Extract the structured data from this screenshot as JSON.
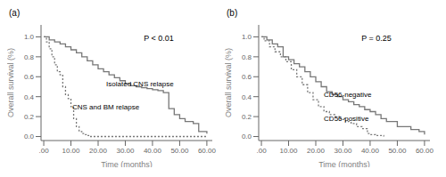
{
  "chart_data": [
    {
      "type": "step",
      "title": "(a)",
      "xlabel": "Time (months)",
      "ylabel": "Overall survival (%)",
      "xlim": [
        -1,
        62
      ],
      "ylim": [
        -0.04,
        1.12
      ],
      "xticks": [
        {
          "value": 0,
          "label": ".00"
        },
        {
          "value": 10,
          "label": "10.00"
        },
        {
          "value": 20,
          "label": "20.00"
        },
        {
          "value": 30,
          "label": "30.00"
        },
        {
          "value": 40,
          "label": "40.00"
        },
        {
          "value": 50,
          "label": "50.00"
        },
        {
          "value": 60,
          "label": "60.00"
        }
      ],
      "yticks": [
        {
          "value": 0.0,
          "label": "0.0"
        },
        0.2,
        0.4,
        0.6,
        0.8,
        {
          "value": 1.0,
          "label": "1.0"
        }
      ],
      "grid": false,
      "legend": false,
      "series": [
        {
          "name": "Isolated CNS relapse",
          "color": "#777777",
          "line_style": "solid",
          "x": [
            0,
            2,
            4,
            6,
            8,
            10,
            12,
            14,
            16,
            18,
            20,
            22,
            24,
            26,
            28,
            30,
            32,
            34,
            36,
            38,
            40,
            42,
            44,
            46,
            48,
            50,
            52,
            55,
            57,
            60
          ],
          "values": [
            1.0,
            0.97,
            0.95,
            0.93,
            0.9,
            0.87,
            0.84,
            0.8,
            0.76,
            0.72,
            0.68,
            0.65,
            0.62,
            0.59,
            0.56,
            0.53,
            0.51,
            0.5,
            0.49,
            0.48,
            0.47,
            0.46,
            0.44,
            0.28,
            0.22,
            0.18,
            0.15,
            0.13,
            0.05,
            0.03
          ]
        },
        {
          "name": "CNS and BM relapse",
          "color": "#777777",
          "line_style": "dotted",
          "x": [
            0,
            1,
            2,
            3,
            4,
            5,
            6,
            7,
            8,
            9,
            10,
            11,
            12,
            13,
            14,
            15,
            16,
            17,
            60
          ],
          "values": [
            1.0,
            0.95,
            0.88,
            0.8,
            0.72,
            0.65,
            0.62,
            0.5,
            0.42,
            0.38,
            0.3,
            0.18,
            0.1,
            0.05,
            0.03,
            0.02,
            0.01,
            0.0,
            0.0
          ]
        }
      ],
      "annotations": [
        {
          "text": "Isolated CNS relapse",
          "x": 22,
          "y": 0.53
        },
        {
          "text": "CNS and BM relapse",
          "x": 9.5,
          "y": 0.295
        },
        {
          "text": "P < 0.01"
        }
      ]
    },
    {
      "type": "step",
      "title": "(b)",
      "xlabel": "Time (months)",
      "ylabel": "Overall survival (%)",
      "xlim": [
        -1,
        62
      ],
      "ylim": [
        -0.04,
        1.12
      ],
      "xticks": [
        {
          "value": 0,
          "label": ".00"
        },
        {
          "value": 10,
          "label": "10.00"
        },
        {
          "value": 20,
          "label": "20.00"
        },
        {
          "value": 30,
          "label": "30.00"
        },
        {
          "value": 40,
          "label": "40.00"
        },
        {
          "value": 50,
          "label": "50.00"
        },
        {
          "value": 60,
          "label": "60.00"
        }
      ],
      "yticks": [
        {
          "value": 0.0,
          "label": "0.0"
        },
        0.2,
        0.4,
        0.6,
        0.8,
        {
          "value": 1.0,
          "label": "1.0"
        }
      ],
      "grid": false,
      "legend": false,
      "series": [
        {
          "name": "CD56-negative",
          "color": "#777777",
          "line_style": "solid",
          "x": [
            0,
            2,
            4,
            6,
            8,
            10,
            12,
            14,
            16,
            18,
            20,
            22,
            24,
            26,
            28,
            30,
            32,
            34,
            36,
            38,
            40,
            42,
            44,
            46,
            50,
            55,
            58,
            60
          ],
          "values": [
            1.0,
            0.97,
            0.93,
            0.9,
            0.8,
            0.77,
            0.73,
            0.7,
            0.65,
            0.6,
            0.55,
            0.5,
            0.45,
            0.42,
            0.4,
            0.37,
            0.35,
            0.32,
            0.3,
            0.27,
            0.25,
            0.22,
            0.18,
            0.15,
            0.1,
            0.07,
            0.05,
            0.02
          ]
        },
        {
          "name": "CD56-positive",
          "color": "#777777",
          "line_style": "dotted",
          "x": [
            0,
            1,
            3,
            5,
            7,
            9,
            11,
            13,
            15,
            17,
            19,
            21,
            23,
            25,
            27,
            29,
            31,
            33,
            35,
            37,
            39,
            40,
            42,
            45
          ],
          "values": [
            1.0,
            0.96,
            0.9,
            0.85,
            0.8,
            0.75,
            0.67,
            0.6,
            0.52,
            0.44,
            0.37,
            0.3,
            0.25,
            0.22,
            0.2,
            0.18,
            0.15,
            0.13,
            0.1,
            0.08,
            0.03,
            0.02,
            0.01,
            0.0
          ]
        }
      ],
      "annotations": [
        {
          "text": "CD56-negative",
          "x": 22,
          "y": 0.42
        },
        {
          "text": "CD56-positive",
          "x": 22,
          "y": 0.18
        },
        {
          "text": "P = 0.25"
        }
      ]
    }
  ]
}
